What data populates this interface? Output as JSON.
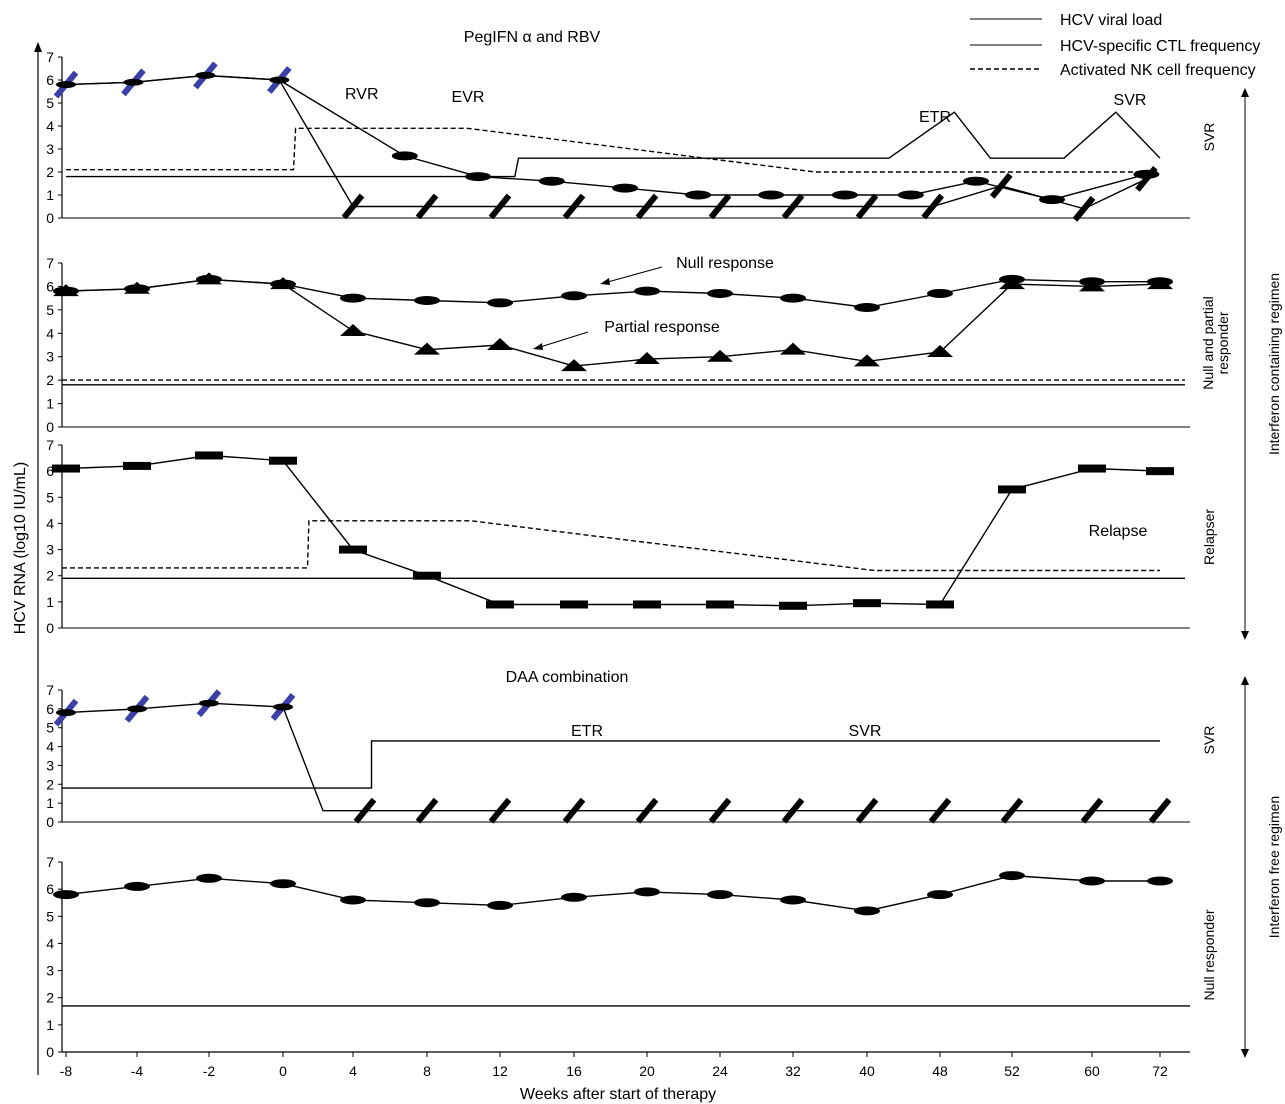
{
  "chart_data": {
    "type": "line",
    "y_axis_title": "HCV RNA (log10 IU/mL)",
    "x_axis_title": "Weeks after start of therapy",
    "x_tick_labels": [
      "-8",
      "-4",
      "-2",
      "0",
      "4",
      "8",
      "12",
      "16",
      "20",
      "24",
      "32",
      "40",
      "48",
      "52",
      "60",
      "72"
    ],
    "y_tick_labels": [
      "0",
      "1",
      "2",
      "3",
      "4",
      "5",
      "6",
      "7"
    ],
    "ylim": [
      0,
      7
    ],
    "legend": {
      "placement": "top-right",
      "entries": [
        "HCV viral load",
        "HCV-specific CTL frequency",
        "Activated NK cell frequency"
      ]
    },
    "groups": [
      {
        "label": "Interferon containing regimen",
        "header": "PegIFN α and RBV",
        "panels": [
          0,
          1,
          2
        ]
      },
      {
        "label": "Interferon free regimen",
        "header": "DAA combination",
        "panels": [
          3,
          4
        ]
      }
    ],
    "panels": [
      {
        "label": "SVR",
        "annotations": [
          "RVR",
          "EVR",
          "ETR",
          "SVR"
        ],
        "series": [
          {
            "role": "viral_load",
            "values": [
              5.8,
              5.9,
              6.2,
              6.0,
              2.7,
              1.8,
              1.6,
              1.3,
              1.0,
              1.0,
              1.0,
              1.0,
              1.6,
              0.8,
              1.9
            ],
            "x_index": [
              0,
              0.95,
              1.95,
              2.95,
              4.7,
              5.7,
              6.7,
              7.7,
              8.7,
              9.7,
              10.7,
              11.6,
              12.5,
              13.5,
              14.8
            ]
          },
          {
            "role": "viral_load_undetectable",
            "values": [
              5.8,
              5.9,
              6.2,
              6.0,
              0.5,
              0.5,
              0.5,
              0.5,
              0.5,
              0.5,
              0.5,
              0.5,
              0.5,
              1.4,
              0.4,
              1.7
            ],
            "x_index": [
              0,
              0.95,
              1.95,
              2.95,
              4,
              5,
              6,
              7,
              8,
              9,
              10,
              11,
              11.9,
              12.85,
              13.9,
              14.8
            ]
          },
          {
            "role": "ctl_frequency",
            "values": [
              1.8,
              1.8,
              1.8,
              1.8,
              1.8,
              1.8,
              2.6,
              2.6,
              2.6,
              4.6,
              2.6,
              2.6,
              4.6,
              2.6
            ],
            "x_index": [
              0,
              2,
              4,
              5.8,
              6.15,
              6.2,
              6.25,
              10,
              11.3,
              12.2,
              12.7,
              13.65,
              14.35,
              15
            ]
          },
          {
            "role": "nk_frequency",
            "values": [
              2.1,
              2.1,
              2.1,
              3.9,
              3.9,
              3.9,
              2.0,
              2.0,
              2.0
            ],
            "x_index": [
              0,
              2,
              3.15,
              3.18,
              5,
              5.55,
              10.3,
              14,
              15
            ]
          }
        ]
      },
      {
        "label": "Null and partial\nresponder",
        "annotations": [
          "Null response",
          "Partial response"
        ],
        "series": [
          {
            "role": "null_response",
            "values": [
              5.8,
              5.9,
              6.3,
              6.1,
              5.5,
              5.4,
              5.3,
              5.6,
              5.8,
              5.7,
              5.5,
              5.1,
              5.7,
              6.3,
              6.2,
              6.2
            ]
          },
          {
            "role": "partial_response",
            "values": [
              5.8,
              5.9,
              6.3,
              6.1,
              4.1,
              3.3,
              3.5,
              2.6,
              2.9,
              3.0,
              3.3,
              2.8,
              3.2,
              6.1,
              6.0,
              6.1
            ]
          },
          {
            "role": "nk_frequency",
            "values": [
              2.0,
              2.0
            ]
          },
          {
            "role": "ctl_frequency",
            "values": [
              1.8,
              1.8
            ]
          }
        ]
      },
      {
        "label": "Relapser",
        "annotations": [
          "Relapse"
        ],
        "series": [
          {
            "role": "viral_load",
            "values": [
              6.1,
              6.2,
              6.6,
              6.4,
              3.0,
              2.0,
              0.9,
              0.9,
              0.9,
              0.9,
              0.85,
              0.95,
              0.9,
              5.3,
              6.1,
              6.0
            ]
          },
          {
            "role": "nk_frequency",
            "values": [
              2.3,
              2.3,
              4.1,
              4.1,
              2.2,
              2.2
            ]
          },
          {
            "role": "ctl_frequency",
            "values": [
              1.9,
              1.9
            ]
          }
        ]
      },
      {
        "label": "SVR",
        "annotations": [
          "ETR",
          "SVR"
        ],
        "series": [
          {
            "role": "viral_load",
            "values": [
              5.8,
              6.0,
              6.3,
              6.1,
              0.6,
              0.6,
              0.6,
              0.6,
              0.6,
              0.6,
              0.6,
              0.6,
              0.6,
              0.6,
              0.6,
              0.6
            ]
          },
          {
            "role": "ctl_frequency",
            "values": [
              1.8,
              1.8,
              4.3,
              4.3
            ]
          }
        ]
      },
      {
        "label": "Null responder",
        "annotations": [],
        "series": [
          {
            "role": "viral_load",
            "values": [
              5.8,
              6.1,
              6.4,
              6.2,
              5.6,
              5.5,
              5.4,
              5.7,
              5.9,
              5.8,
              5.6,
              5.2,
              5.8,
              6.5,
              6.3,
              6.3
            ]
          },
          {
            "role": "ctl_frequency",
            "values": [
              1.7,
              1.7
            ]
          }
        ]
      }
    ],
    "grid": false
  }
}
